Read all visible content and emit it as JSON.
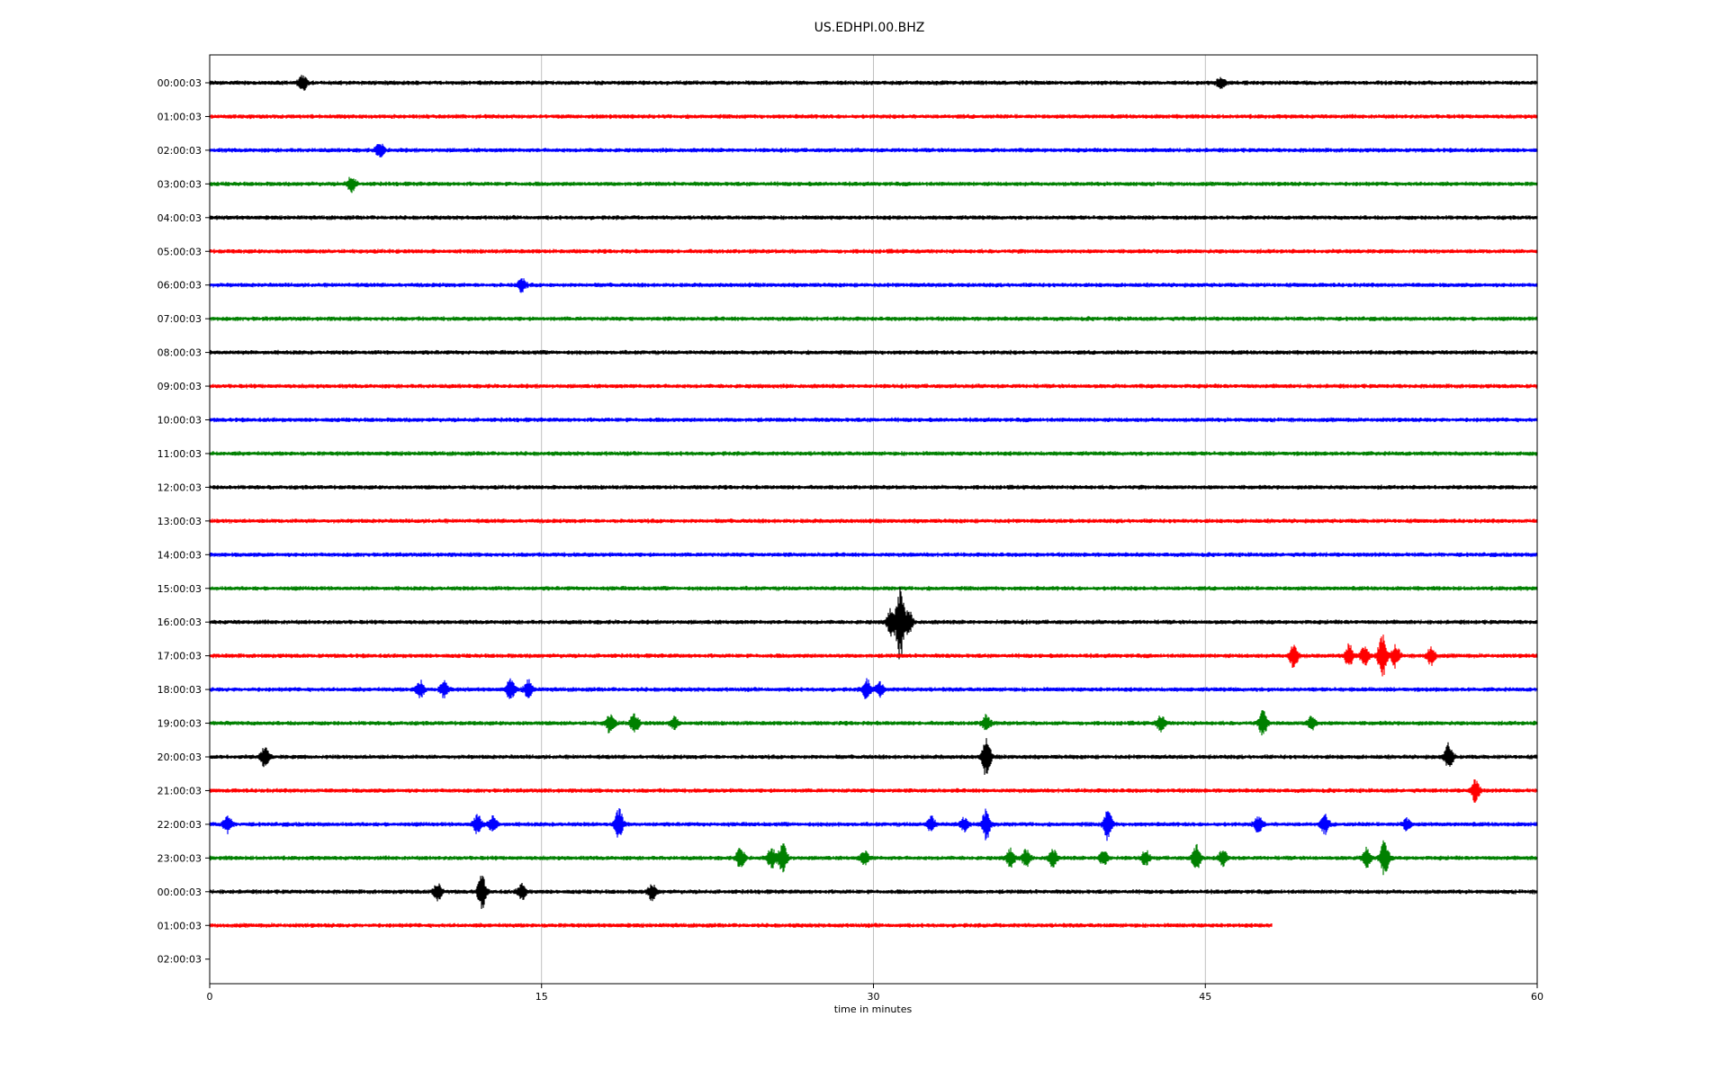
{
  "chart_data": {
    "type": "line",
    "title": "US.EDHPI.00.BHZ",
    "xlabel": "time in minutes",
    "ylabel": "",
    "xlim": [
      0,
      60
    ],
    "x_ticks": [
      "0",
      "15",
      "30",
      "45",
      "60"
    ],
    "x_tick_values": [
      0,
      15,
      30,
      45,
      60
    ],
    "grid": "vertical",
    "legend": "none",
    "colors": [
      "#000000",
      "#ff0000",
      "#0000ff",
      "#008000"
    ],
    "noise_amplitude": 0.12,
    "rows": [
      {
        "label": "00:00:03",
        "end": 60,
        "events": [
          {
            "t": 4.2,
            "amp": 0.35
          },
          {
            "t": 45.7,
            "amp": 0.25
          }
        ]
      },
      {
        "label": "01:00:03",
        "end": 60,
        "events": []
      },
      {
        "label": "02:00:03",
        "end": 60,
        "events": [
          {
            "t": 7.7,
            "amp": 0.35
          }
        ]
      },
      {
        "label": "03:00:03",
        "end": 60,
        "events": [
          {
            "t": 6.4,
            "amp": 0.35
          }
        ]
      },
      {
        "label": "04:00:03",
        "end": 60,
        "events": []
      },
      {
        "label": "05:00:03",
        "end": 60,
        "events": []
      },
      {
        "label": "06:00:03",
        "end": 60,
        "events": [
          {
            "t": 14.1,
            "amp": 0.3
          }
        ]
      },
      {
        "label": "07:00:03",
        "end": 60,
        "events": []
      },
      {
        "label": "08:00:03",
        "end": 60,
        "events": []
      },
      {
        "label": "09:00:03",
        "end": 60,
        "events": []
      },
      {
        "label": "10:00:03",
        "end": 60,
        "events": []
      },
      {
        "label": "11:00:03",
        "end": 60,
        "events": []
      },
      {
        "label": "12:00:03",
        "end": 60,
        "events": []
      },
      {
        "label": "13:00:03",
        "end": 60,
        "events": []
      },
      {
        "label": "14:00:03",
        "end": 60,
        "events": []
      },
      {
        "label": "15:00:03",
        "end": 60,
        "events": []
      },
      {
        "label": "16:00:03",
        "end": 60,
        "events": [
          {
            "t": 31.2,
            "amp": 1.7
          },
          {
            "t": 30.8,
            "amp": 0.6
          },
          {
            "t": 31.6,
            "amp": 0.5
          }
        ]
      },
      {
        "label": "17:00:03",
        "end": 60,
        "events": [
          {
            "t": 49.0,
            "amp": 0.6
          },
          {
            "t": 51.5,
            "amp": 0.5
          },
          {
            "t": 52.2,
            "amp": 0.45
          },
          {
            "t": 53.0,
            "amp": 1.1
          },
          {
            "t": 53.6,
            "amp": 0.5
          },
          {
            "t": 55.2,
            "amp": 0.4
          }
        ]
      },
      {
        "label": "18:00:03",
        "end": 60,
        "events": [
          {
            "t": 9.5,
            "amp": 0.4
          },
          {
            "t": 10.6,
            "amp": 0.35
          },
          {
            "t": 13.6,
            "amp": 0.45
          },
          {
            "t": 14.4,
            "amp": 0.4
          },
          {
            "t": 29.7,
            "amp": 0.45
          },
          {
            "t": 30.3,
            "amp": 0.3
          }
        ]
      },
      {
        "label": "19:00:03",
        "end": 60,
        "events": [
          {
            "t": 18.1,
            "amp": 0.45
          },
          {
            "t": 19.2,
            "amp": 0.45
          },
          {
            "t": 21.0,
            "amp": 0.25
          },
          {
            "t": 35.1,
            "amp": 0.35
          },
          {
            "t": 43.0,
            "amp": 0.35
          },
          {
            "t": 47.6,
            "amp": 0.55
          },
          {
            "t": 49.8,
            "amp": 0.3
          }
        ]
      },
      {
        "label": "20:00:03",
        "end": 60,
        "events": [
          {
            "t": 2.5,
            "amp": 0.45
          },
          {
            "t": 35.1,
            "amp": 0.9
          },
          {
            "t": 56.0,
            "amp": 0.6
          }
        ]
      },
      {
        "label": "21:00:03",
        "end": 60,
        "events": [
          {
            "t": 57.2,
            "amp": 0.5
          }
        ]
      },
      {
        "label": "22:00:03",
        "end": 60,
        "events": [
          {
            "t": 0.8,
            "amp": 0.4
          },
          {
            "t": 12.1,
            "amp": 0.45
          },
          {
            "t": 12.8,
            "amp": 0.35
          },
          {
            "t": 18.5,
            "amp": 0.7
          },
          {
            "t": 32.6,
            "amp": 0.35
          },
          {
            "t": 34.1,
            "amp": 0.3
          },
          {
            "t": 35.1,
            "amp": 0.7
          },
          {
            "t": 40.6,
            "amp": 0.7
          },
          {
            "t": 47.4,
            "amp": 0.35
          },
          {
            "t": 50.4,
            "amp": 0.4
          },
          {
            "t": 54.1,
            "amp": 0.25
          }
        ]
      },
      {
        "label": "23:00:03",
        "end": 60,
        "events": [
          {
            "t": 24.0,
            "amp": 0.5
          },
          {
            "t": 25.4,
            "amp": 0.45
          },
          {
            "t": 25.9,
            "amp": 0.75
          },
          {
            "t": 29.6,
            "amp": 0.3
          },
          {
            "t": 36.2,
            "amp": 0.4
          },
          {
            "t": 36.9,
            "amp": 0.35
          },
          {
            "t": 38.1,
            "amp": 0.4
          },
          {
            "t": 40.4,
            "amp": 0.35
          },
          {
            "t": 42.3,
            "amp": 0.3
          },
          {
            "t": 44.6,
            "amp": 0.55
          },
          {
            "t": 45.8,
            "amp": 0.35
          },
          {
            "t": 52.3,
            "amp": 0.45
          },
          {
            "t": 53.1,
            "amp": 0.85
          }
        ]
      },
      {
        "label": "00:00:03",
        "end": 60,
        "events": [
          {
            "t": 10.3,
            "amp": 0.4
          },
          {
            "t": 12.3,
            "amp": 0.75
          },
          {
            "t": 14.1,
            "amp": 0.35
          },
          {
            "t": 20.0,
            "amp": 0.35
          }
        ]
      },
      {
        "label": "01:00:03",
        "end": 48.0,
        "events": []
      },
      {
        "label": "02:00:03",
        "end": 0,
        "events": []
      }
    ]
  }
}
